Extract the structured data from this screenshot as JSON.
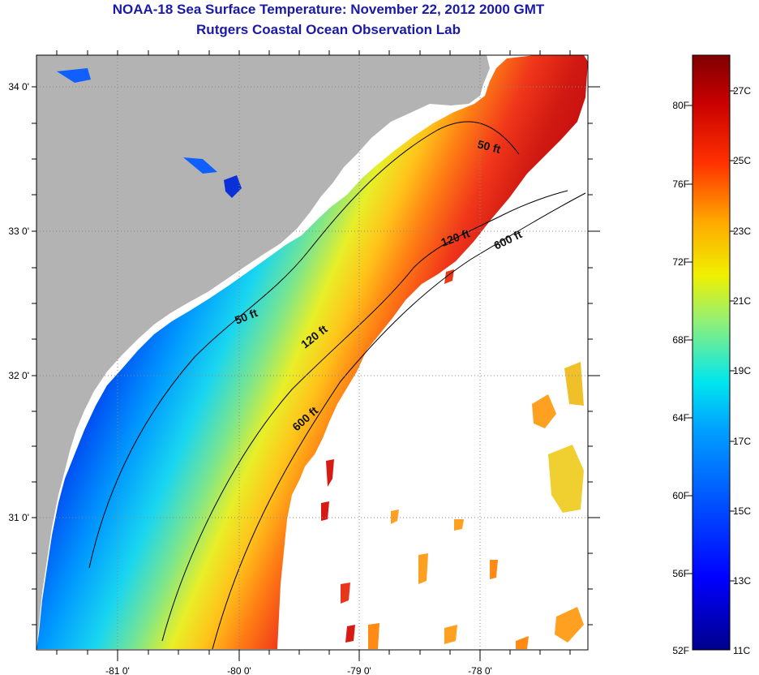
{
  "title": {
    "line1": "NOAA-18 Sea Surface Temperature:  November 22, 2012 2000 GMT",
    "line2": "Rutgers Coastal Ocean Observation Lab"
  },
  "map": {
    "lat_ticks": [
      "34 0'",
      "33 0'",
      "32 0'",
      "31 0'"
    ],
    "lon_ticks": [
      "-81 0'",
      "-80 0'",
      "-79 0'",
      "-78 0'"
    ],
    "contour_labels": {
      "ft50_north": "50 ft",
      "ft50_south": "50 ft",
      "ft120_north": "120 ft",
      "ft120_south": "120 ft",
      "ft600_north": "600 ft",
      "ft600_south": "600 ft"
    },
    "colors": {
      "land": "#b3b3b3",
      "no_data": "#ffffff",
      "contour": "#000000"
    }
  },
  "colorbar": {
    "fahrenheit_ticks": [
      "80F",
      "76F",
      "72F",
      "68F",
      "64F",
      "60F",
      "56F",
      "52F"
    ],
    "celsius_ticks": [
      "27C",
      "25C",
      "23C",
      "21C",
      "19C",
      "17C",
      "15C",
      "13C",
      "11C"
    ],
    "range_celsius": [
      11,
      28
    ],
    "colormap": "jet"
  }
}
